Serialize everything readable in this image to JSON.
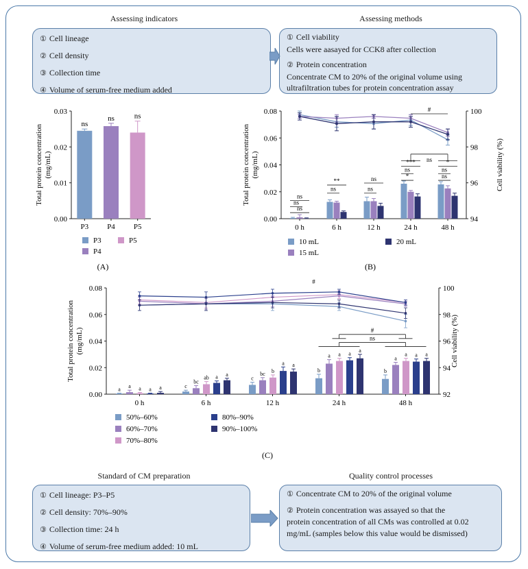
{
  "indicators": {
    "title": "Assessing indicators",
    "items": [
      {
        "n": "①",
        "text": "Cell lineage"
      },
      {
        "n": "②",
        "text": "Cell density"
      },
      {
        "n": "③",
        "text": "Collection time"
      },
      {
        "n": "④",
        "text": "Volume of serum-free medium added"
      }
    ]
  },
  "methods": {
    "title": "Assessing methods",
    "items": [
      {
        "n": "①",
        "head": "Cell viability",
        "body": [
          "Cells were aasayed for CCK8 after collection"
        ]
      },
      {
        "n": "②",
        "head": "Protein concentration",
        "body": [
          "Concentrate CM to 20% of the original volume using",
          "ultrafiltration tubes for protein concentration assay"
        ]
      }
    ]
  },
  "standard": {
    "title": "Standard of CM preparation",
    "items": [
      {
        "n": "①",
        "text": "Cell lineage: P3–P5"
      },
      {
        "n": "②",
        "text": "Cell density: 70%–90%"
      },
      {
        "n": "③",
        "text": "Collection time: 24 h"
      },
      {
        "n": "④",
        "text": "Volume of serum-free medium added: 10 mL"
      }
    ]
  },
  "quality": {
    "title": "Quality control processes",
    "items": [
      {
        "n": "①",
        "lines": [
          "Concentrate CM to 20% of the original volume"
        ]
      },
      {
        "n": "②",
        "lines": [
          "Protein concentration was assayed so that the",
          "protein concentration of all CMs was controlled at 0.02",
          "mg/mL (samples below this value would be dismissed)"
        ]
      }
    ]
  },
  "colors": {
    "blue_light": "#7a9cc6",
    "purple_mid": "#9a80be",
    "pink": "#cf97c8",
    "navy": "#2e3470",
    "blue_dark": "#2a3f8c",
    "box_fill": "#dbe5f1",
    "box_border": "#5a7fa8",
    "frame": "#4a78a8"
  },
  "chart_data": [
    {
      "panel": "(A)",
      "type": "bar",
      "ylabel": "Total protein concentration (mg/mL)",
      "ylim": [
        0,
        0.03
      ],
      "yticks": [
        "0.00",
        "0.01",
        "0.02",
        "0.03"
      ],
      "categories": [
        "P3",
        "P4",
        "P5"
      ],
      "values": [
        0.0245,
        0.0258,
        0.024
      ],
      "errors": [
        0.0005,
        0.0008,
        0.0032
      ],
      "colors": [
        "#7a9cc6",
        "#9a80be",
        "#cf97c8"
      ],
      "annotations": [
        "ns",
        "ns",
        "ns"
      ],
      "legend": [
        "P3",
        "P5",
        "P4"
      ]
    },
    {
      "panel": "(B)",
      "type": "bar+line",
      "ylabel": "Total protein concentration (mg/mL)",
      "y2label": "Cell viability (%)",
      "ylim": [
        0,
        0.08
      ],
      "y2lim": [
        94,
        100
      ],
      "yticks": [
        "0.00",
        "0.02",
        "0.04",
        "0.06",
        "0.08"
      ],
      "y2ticks": [
        "94",
        "96",
        "98",
        "100"
      ],
      "categories": [
        "0 h",
        "6 h",
        "12 h",
        "24 h",
        "48 h"
      ],
      "series": [
        {
          "name": "10 mL",
          "color": "#7a9cc6",
          "values": [
            0.0005,
            0.0125,
            0.013,
            0.026,
            0.0255
          ],
          "errors": [
            0.0005,
            0.0015,
            0.003,
            0.002,
            0.002
          ],
          "viability": [
            99.8,
            99.4,
            99.3,
            99.5,
            98.4
          ],
          "viab_err": [
            0.2,
            0.3,
            0.3,
            0.3,
            0.3
          ]
        },
        {
          "name": "15 mL",
          "color": "#9a80be",
          "values": [
            0.001,
            0.012,
            0.013,
            0.02,
            0.0225
          ],
          "errors": [
            0.002,
            0.001,
            0.002,
            0.001,
            0.002
          ],
          "viability": [
            99.7,
            99.6,
            99.7,
            99.6,
            98.8
          ],
          "viab_err": [
            0.1,
            0.2,
            0.1,
            0.2,
            0.2
          ]
        },
        {
          "name": "20 mL",
          "color": "#2e3470",
          "values": [
            0.0003,
            0.005,
            0.0095,
            0.0165,
            0.017
          ],
          "errors": [
            0.0003,
            0.0008,
            0.002,
            0.002,
            0.002
          ],
          "viability": [
            99.7,
            99.3,
            99.4,
            99.4,
            98.7
          ],
          "viab_err": [
            0.2,
            0.4,
            0.4,
            0.3,
            0.3
          ]
        }
      ],
      "annotations": [
        "ns",
        "ns",
        "ns",
        "ns",
        "**",
        "ns",
        "ns",
        "ns",
        "***",
        "*",
        "ns",
        "*",
        "ns",
        "ns",
        "#"
      ],
      "legend": [
        "10 mL",
        "20 mL",
        "15 mL"
      ]
    },
    {
      "panel": "(C)",
      "type": "bar+line",
      "ylabel": "Total protein concentration (mg/mL)",
      "y2label": "Cell viability (%)",
      "ylim": [
        0,
        0.08
      ],
      "y2lim": [
        92,
        100
      ],
      "yticks": [
        "0.00",
        "0.02",
        "0.04",
        "0.06",
        "0.08"
      ],
      "y2ticks": [
        "92",
        "94",
        "96",
        "98",
        "100"
      ],
      "categories": [
        "0 h",
        "6 h",
        "12 h",
        "24 h",
        "48 h"
      ],
      "series": [
        {
          "name": "50%–60%",
          "color": "#7a9cc6",
          "values": [
            0.0005,
            0.002,
            0.007,
            0.012,
            0.0115
          ],
          "errors": [
            0.0003,
            0.001,
            0.002,
            0.003,
            0.003
          ],
          "letters": [
            "a",
            "c",
            "c",
            "b",
            "b"
          ],
          "viability": [
            98.7,
            98.8,
            98.8,
            98.6,
            97.5
          ],
          "viab_err": [
            0.4,
            0.5,
            0.5,
            0.3,
            0.5
          ]
        },
        {
          "name": "60%–70%",
          "color": "#9a80be",
          "values": [
            0.0015,
            0.0045,
            0.0105,
            0.023,
            0.022
          ],
          "errors": [
            0.0015,
            0.002,
            0.002,
            0.003,
            0.002
          ],
          "letters": [
            "a",
            "bc",
            "bc",
            "a",
            "a"
          ],
          "viability": [
            99.0,
            98.8,
            99.0,
            99.4,
            98.8
          ],
          "viab_err": [
            0.3,
            0.4,
            0.4,
            0.2,
            0.2
          ]
        },
        {
          "name": "70%–80%",
          "color": "#cf97c8",
          "values": [
            0.0008,
            0.0075,
            0.0125,
            0.025,
            0.025
          ],
          "errors": [
            0.0005,
            0.002,
            0.002,
            0.002,
            0.002
          ],
          "letters": [
            "a",
            "ab",
            "b",
            "a",
            "a"
          ],
          "viability": [
            99.1,
            98.9,
            99.3,
            99.5,
            98.9
          ],
          "viab_err": [
            0.3,
            0.4,
            0.3,
            0.3,
            0.2
          ]
        },
        {
          "name": "80%–90%",
          "color": "#2a3f8c",
          "values": [
            0.0005,
            0.0085,
            0.0175,
            0.0255,
            0.0245
          ],
          "errors": [
            0.0003,
            0.0015,
            0.003,
            0.002,
            0.002
          ],
          "letters": [
            "a",
            "a",
            "a",
            "a",
            "a"
          ],
          "viability": [
            99.4,
            99.3,
            99.6,
            99.7,
            98.9
          ],
          "viab_err": [
            0.3,
            0.4,
            0.3,
            0.2,
            0.2
          ]
        },
        {
          "name": "90%–100%",
          "color": "#2e3470",
          "values": [
            0.001,
            0.0105,
            0.017,
            0.027,
            0.025
          ],
          "errors": [
            0.001,
            0.0015,
            0.002,
            0.003,
            0.002
          ],
          "letters": [
            "a",
            "a",
            "a",
            "a",
            "a"
          ],
          "viability": [
            98.7,
            98.8,
            98.9,
            98.8,
            98.1
          ],
          "viab_err": [
            0.4,
            0.5,
            0.4,
            0.3,
            0.4
          ]
        }
      ],
      "annotations": [
        "#",
        "#",
        "ns"
      ],
      "legend": [
        "50%–60%",
        "80%–90%",
        "60%–70%",
        "90%–100%",
        "70%–80%"
      ]
    }
  ]
}
